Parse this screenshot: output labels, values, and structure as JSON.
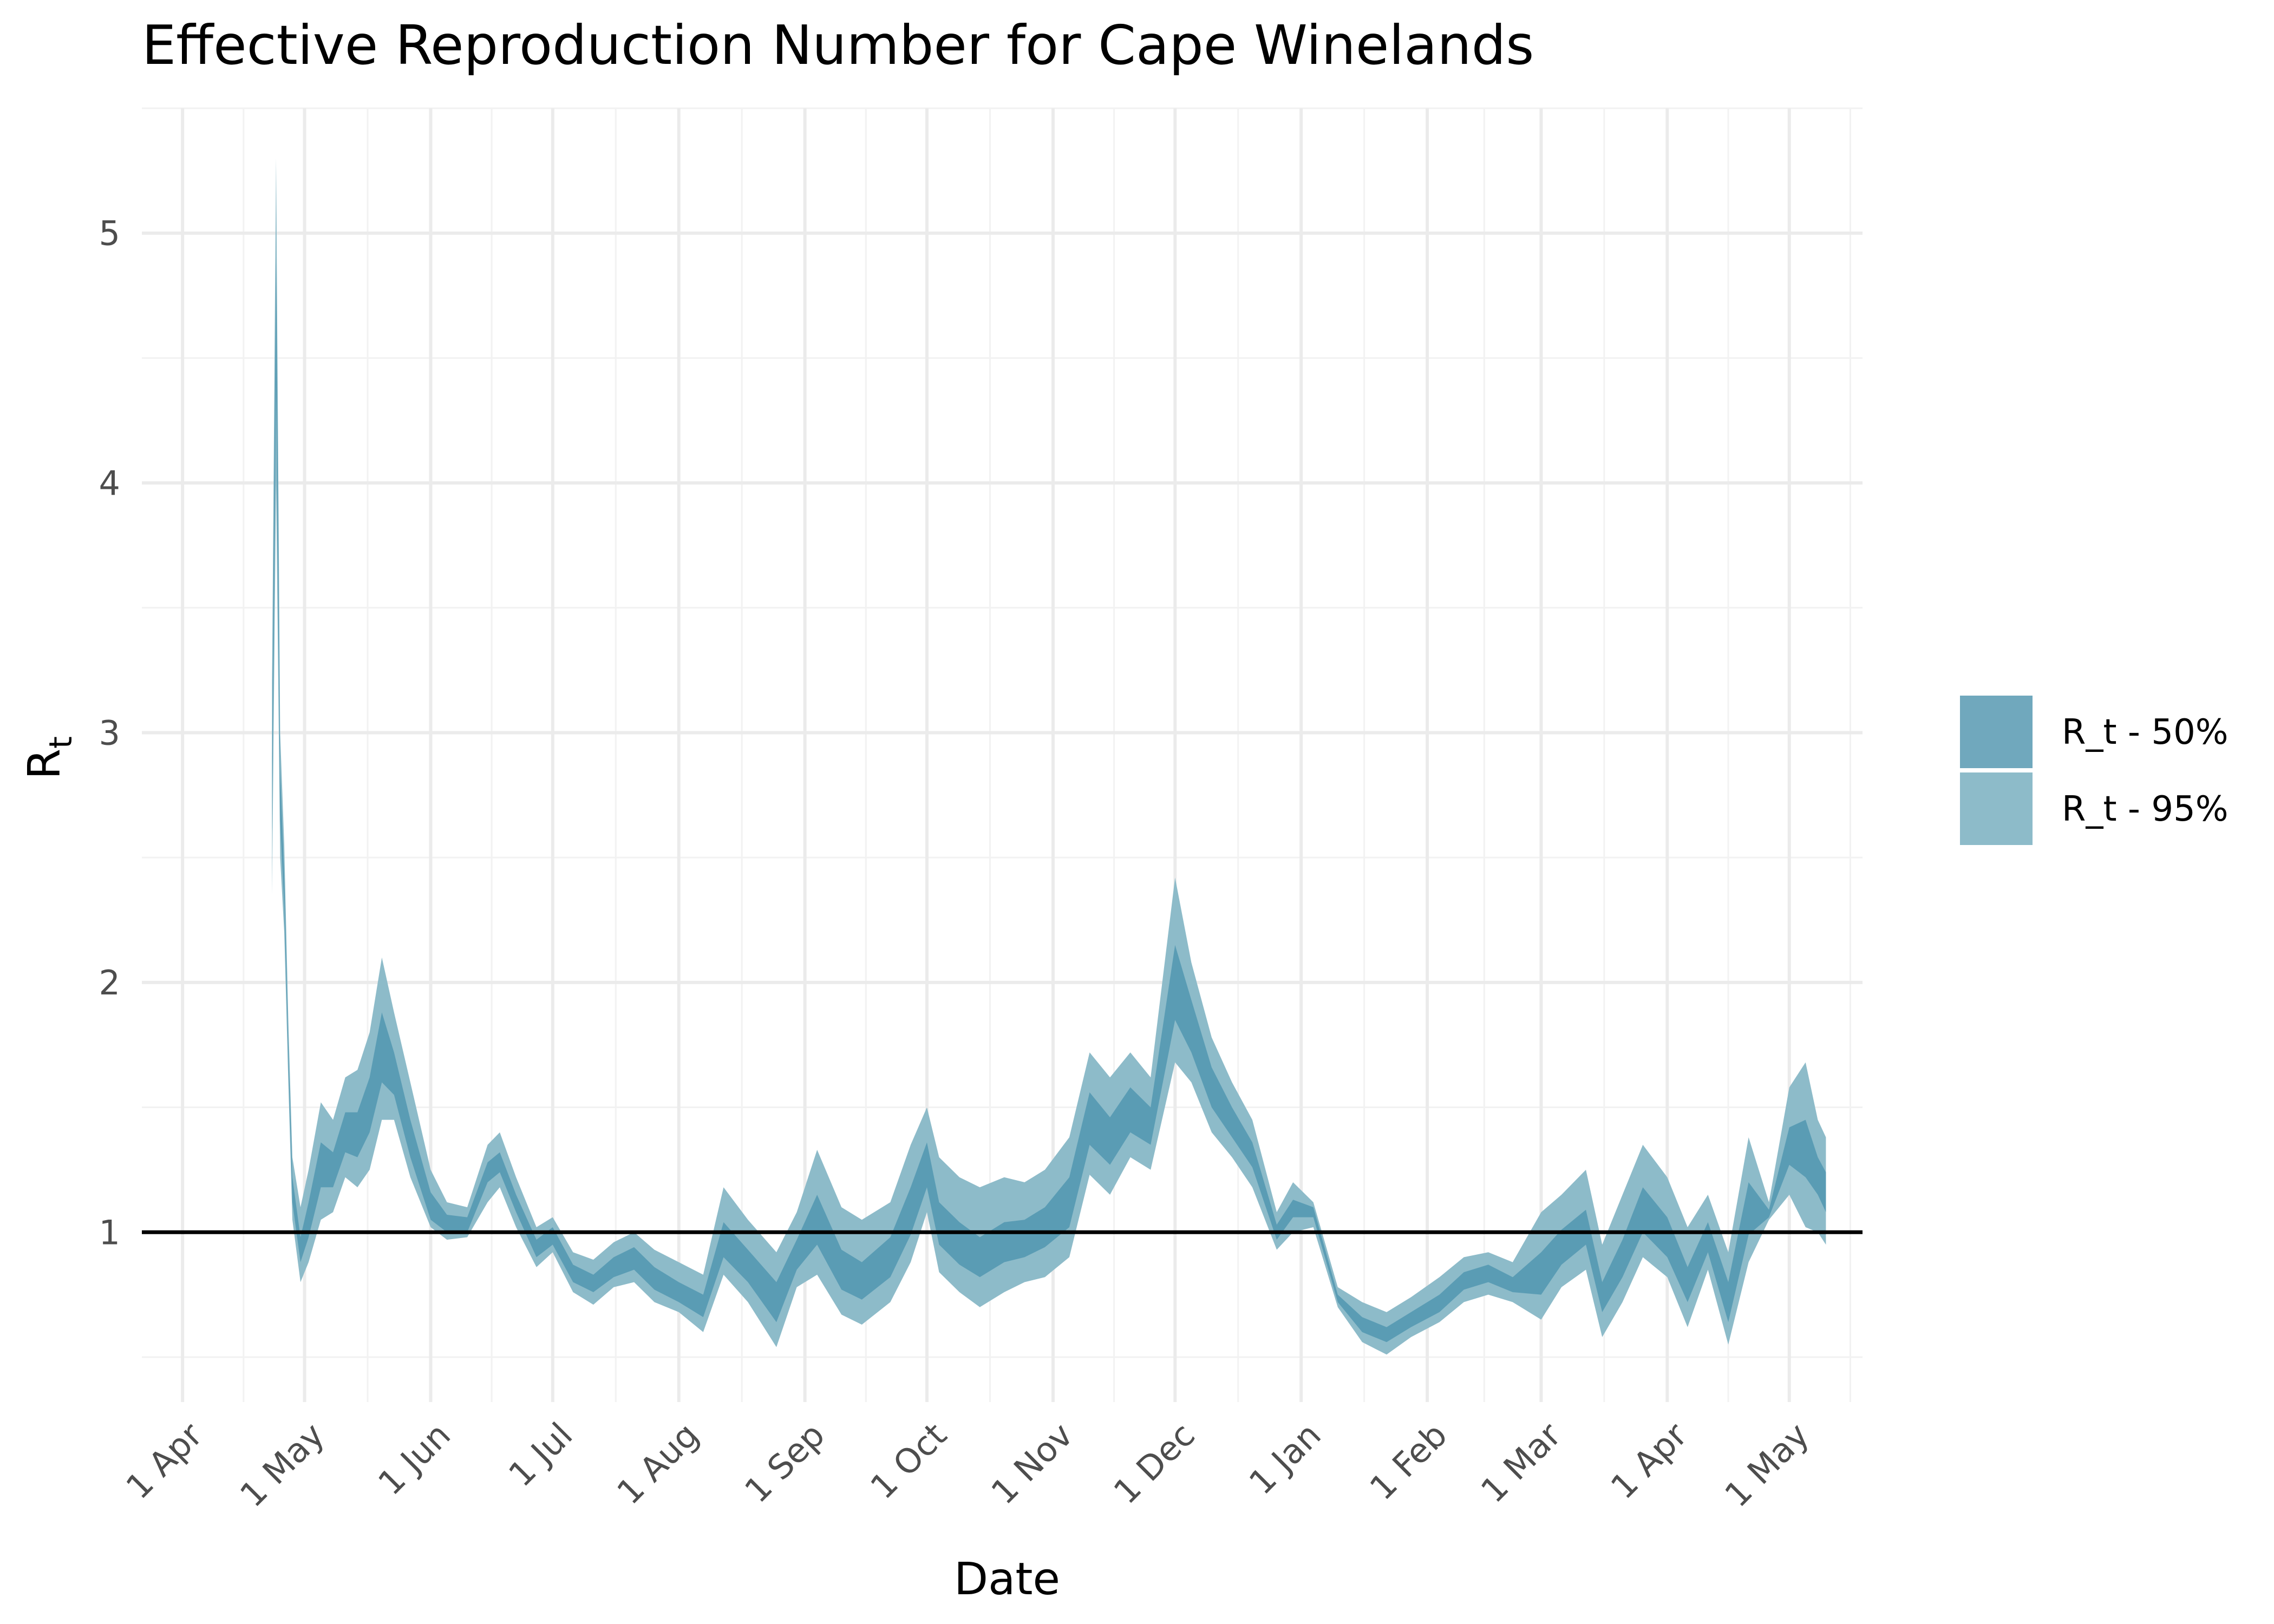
{
  "chart_data": {
    "type": "area",
    "title": "Effective Reproduction Number for Cape Winelands",
    "xlabel": "Date",
    "ylabel": "R",
    "ylabel_subscript": "t",
    "x_tick_labels": [
      "1 Apr",
      "1 May",
      "1 Jun",
      "1 Jul",
      "1 Aug",
      "1 Sep",
      "1 Oct",
      "1 Nov",
      "1 Dec",
      "1 Jan",
      "1 Feb",
      "1 Mar",
      "1 Apr",
      "1 May"
    ],
    "x_tick_dates": [
      "2020-04-01",
      "2020-05-01",
      "2020-06-01",
      "2020-07-01",
      "2020-08-01",
      "2020-09-01",
      "2020-10-01",
      "2020-11-01",
      "2020-12-01",
      "2021-01-01",
      "2021-02-01",
      "2021-03-01",
      "2021-04-01",
      "2021-05-01"
    ],
    "x_range": [
      "2020-03-22",
      "2021-05-19"
    ],
    "y_ticks": [
      1,
      2,
      3,
      4,
      5
    ],
    "y_tick_labels": [
      "1",
      "2",
      "3",
      "4",
      "5"
    ],
    "ylim": [
      0.32,
      5.5
    ],
    "reference_line": 1,
    "grid": true,
    "legend_position": "right",
    "legend": [
      {
        "label": "R_t - 50%",
        "color": "#70a8bd"
      },
      {
        "label": "R_t - 95%",
        "color": "#8dbbc9"
      }
    ],
    "colors": {
      "band95": "#8dbbc9",
      "band50": "#5a9cb4",
      "reference": "#000000"
    },
    "series": [
      {
        "name": "R_t - 95%",
        "kind": "band",
        "x": [
          "2020-04-23",
          "2020-04-24",
          "2020-04-25",
          "2020-04-26",
          "2020-04-27",
          "2020-04-28",
          "2020-04-30",
          "2020-05-02",
          "2020-05-05",
          "2020-05-08",
          "2020-05-11",
          "2020-05-14",
          "2020-05-17",
          "2020-05-20",
          "2020-05-23",
          "2020-05-27",
          "2020-06-01",
          "2020-06-05",
          "2020-06-10",
          "2020-06-15",
          "2020-06-18",
          "2020-06-22",
          "2020-06-27",
          "2020-07-01",
          "2020-07-06",
          "2020-07-11",
          "2020-07-16",
          "2020-07-21",
          "2020-07-26",
          "2020-08-01",
          "2020-08-07",
          "2020-08-12",
          "2020-08-18",
          "2020-08-25",
          "2020-08-30",
          "2020-09-04",
          "2020-09-10",
          "2020-09-15",
          "2020-09-22",
          "2020-09-27",
          "2020-10-01",
          "2020-10-04",
          "2020-10-09",
          "2020-10-14",
          "2020-10-20",
          "2020-10-25",
          "2020-10-30",
          "2020-11-05",
          "2020-11-10",
          "2020-11-15",
          "2020-11-20",
          "2020-11-25",
          "2020-12-01",
          "2020-12-05",
          "2020-12-10",
          "2020-12-15",
          "2020-12-20",
          "2020-12-26",
          "2020-12-30",
          "2021-01-04",
          "2021-01-10",
          "2021-01-16",
          "2021-01-22",
          "2021-01-28",
          "2021-02-04",
          "2021-02-10",
          "2021-02-16",
          "2021-02-22",
          "2021-03-01",
          "2021-03-06",
          "2021-03-12",
          "2021-03-16",
          "2021-03-21",
          "2021-03-26",
          "2021-04-01",
          "2021-04-06",
          "2021-04-11",
          "2021-04-16",
          "2021-04-21",
          "2021-04-26",
          "2021-05-01",
          "2021-05-05",
          "2021-05-08",
          "2021-05-10"
        ],
        "lower": [
          2.35,
          4.0,
          2.5,
          2.2,
          1.6,
          1.05,
          0.8,
          0.88,
          1.05,
          1.08,
          1.22,
          1.18,
          1.25,
          1.45,
          1.45,
          1.22,
          1.02,
          0.97,
          0.98,
          1.12,
          1.18,
          1.02,
          0.86,
          0.92,
          0.76,
          0.71,
          0.78,
          0.8,
          0.72,
          0.68,
          0.6,
          0.83,
          0.72,
          0.54,
          0.78,
          0.83,
          0.67,
          0.63,
          0.72,
          0.88,
          1.08,
          0.84,
          0.76,
          0.7,
          0.76,
          0.8,
          0.82,
          0.9,
          1.23,
          1.15,
          1.3,
          1.25,
          1.68,
          1.6,
          1.4,
          1.3,
          1.18,
          0.93,
          1.0,
          1.02,
          0.7,
          0.56,
          0.51,
          0.58,
          0.64,
          0.72,
          0.75,
          0.72,
          0.65,
          0.78,
          0.85,
          0.58,
          0.72,
          0.9,
          0.82,
          0.62,
          0.85,
          0.55,
          0.88,
          1.05,
          1.15,
          1.02,
          1.0,
          0.95
        ],
        "upper": [
          3.2,
          5.3,
          3.0,
          2.55,
          1.85,
          1.3,
          1.1,
          1.25,
          1.52,
          1.45,
          1.62,
          1.65,
          1.8,
          2.1,
          1.88,
          1.6,
          1.25,
          1.12,
          1.1,
          1.35,
          1.4,
          1.22,
          1.02,
          1.06,
          0.92,
          0.89,
          0.96,
          1.0,
          0.93,
          0.88,
          0.83,
          1.18,
          1.05,
          0.92,
          1.08,
          1.33,
          1.1,
          1.05,
          1.12,
          1.35,
          1.5,
          1.3,
          1.22,
          1.18,
          1.22,
          1.2,
          1.25,
          1.38,
          1.72,
          1.62,
          1.72,
          1.62,
          2.42,
          2.08,
          1.78,
          1.6,
          1.45,
          1.08,
          1.2,
          1.12,
          0.78,
          0.72,
          0.68,
          0.74,
          0.82,
          0.9,
          0.92,
          0.88,
          1.08,
          1.15,
          1.25,
          0.95,
          1.15,
          1.35,
          1.22,
          1.02,
          1.15,
          0.92,
          1.38,
          1.12,
          1.58,
          1.68,
          1.45,
          1.38
        ]
      },
      {
        "name": "R_t - 50%",
        "kind": "band",
        "x": [
          "2020-04-23",
          "2020-04-24",
          "2020-04-25",
          "2020-04-26",
          "2020-04-27",
          "2020-04-28",
          "2020-04-30",
          "2020-05-02",
          "2020-05-05",
          "2020-05-08",
          "2020-05-11",
          "2020-05-14",
          "2020-05-17",
          "2020-05-20",
          "2020-05-23",
          "2020-05-27",
          "2020-06-01",
          "2020-06-05",
          "2020-06-10",
          "2020-06-15",
          "2020-06-18",
          "2020-06-22",
          "2020-06-27",
          "2020-07-01",
          "2020-07-06",
          "2020-07-11",
          "2020-07-16",
          "2020-07-21",
          "2020-07-26",
          "2020-08-01",
          "2020-08-07",
          "2020-08-12",
          "2020-08-18",
          "2020-08-25",
          "2020-08-30",
          "2020-09-04",
          "2020-09-10",
          "2020-09-15",
          "2020-09-22",
          "2020-09-27",
          "2020-10-01",
          "2020-10-04",
          "2020-10-09",
          "2020-10-14",
          "2020-10-20",
          "2020-10-25",
          "2020-10-30",
          "2020-11-05",
          "2020-11-10",
          "2020-11-15",
          "2020-11-20",
          "2020-11-25",
          "2020-12-01",
          "2020-12-05",
          "2020-12-10",
          "2020-12-15",
          "2020-12-20",
          "2020-12-26",
          "2020-12-30",
          "2021-01-04",
          "2021-01-10",
          "2021-01-16",
          "2021-01-22",
          "2021-01-28",
          "2021-02-04",
          "2021-02-10",
          "2021-02-16",
          "2021-02-22",
          "2021-03-01",
          "2021-03-06",
          "2021-03-12",
          "2021-03-16",
          "2021-03-21",
          "2021-03-26",
          "2021-04-01",
          "2021-04-06",
          "2021-04-11",
          "2021-04-16",
          "2021-04-21",
          "2021-04-26",
          "2021-05-01",
          "2021-05-05",
          "2021-05-08",
          "2021-05-10"
        ],
        "lower": [
          2.6,
          4.4,
          2.65,
          2.3,
          1.68,
          1.12,
          0.88,
          0.98,
          1.18,
          1.18,
          1.32,
          1.3,
          1.4,
          1.6,
          1.55,
          1.3,
          1.05,
          1.0,
          1.0,
          1.2,
          1.24,
          1.08,
          0.9,
          0.95,
          0.8,
          0.76,
          0.82,
          0.85,
          0.77,
          0.72,
          0.66,
          0.9,
          0.8,
          0.64,
          0.85,
          0.95,
          0.77,
          0.73,
          0.82,
          0.99,
          1.18,
          0.95,
          0.87,
          0.82,
          0.88,
          0.9,
          0.94,
          1.02,
          1.35,
          1.27,
          1.4,
          1.35,
          1.85,
          1.72,
          1.5,
          1.38,
          1.26,
          0.97,
          1.06,
          1.06,
          0.72,
          0.6,
          0.56,
          0.62,
          0.68,
          0.77,
          0.8,
          0.76,
          0.75,
          0.87,
          0.95,
          0.68,
          0.82,
          1.0,
          0.9,
          0.72,
          0.92,
          0.64,
          0.99,
          1.06,
          1.27,
          1.22,
          1.15,
          1.08
        ],
        "upper": [
          2.9,
          4.9,
          2.85,
          2.42,
          1.76,
          1.22,
          0.98,
          1.12,
          1.36,
          1.32,
          1.48,
          1.48,
          1.62,
          1.88,
          1.72,
          1.45,
          1.16,
          1.07,
          1.06,
          1.28,
          1.32,
          1.15,
          0.97,
          1.02,
          0.87,
          0.83,
          0.9,
          0.94,
          0.86,
          0.8,
          0.75,
          1.04,
          0.93,
          0.8,
          0.97,
          1.15,
          0.93,
          0.88,
          0.98,
          1.18,
          1.36,
          1.12,
          1.04,
          0.98,
          1.04,
          1.05,
          1.1,
          1.22,
          1.56,
          1.46,
          1.58,
          1.5,
          2.15,
          1.93,
          1.66,
          1.5,
          1.36,
          1.03,
          1.13,
          1.1,
          0.75,
          0.66,
          0.62,
          0.68,
          0.75,
          0.84,
          0.87,
          0.82,
          0.92,
          1.01,
          1.09,
          0.8,
          0.97,
          1.18,
          1.06,
          0.86,
          1.04,
          0.8,
          1.2,
          1.09,
          1.42,
          1.45,
          1.3,
          1.24
        ]
      }
    ]
  }
}
